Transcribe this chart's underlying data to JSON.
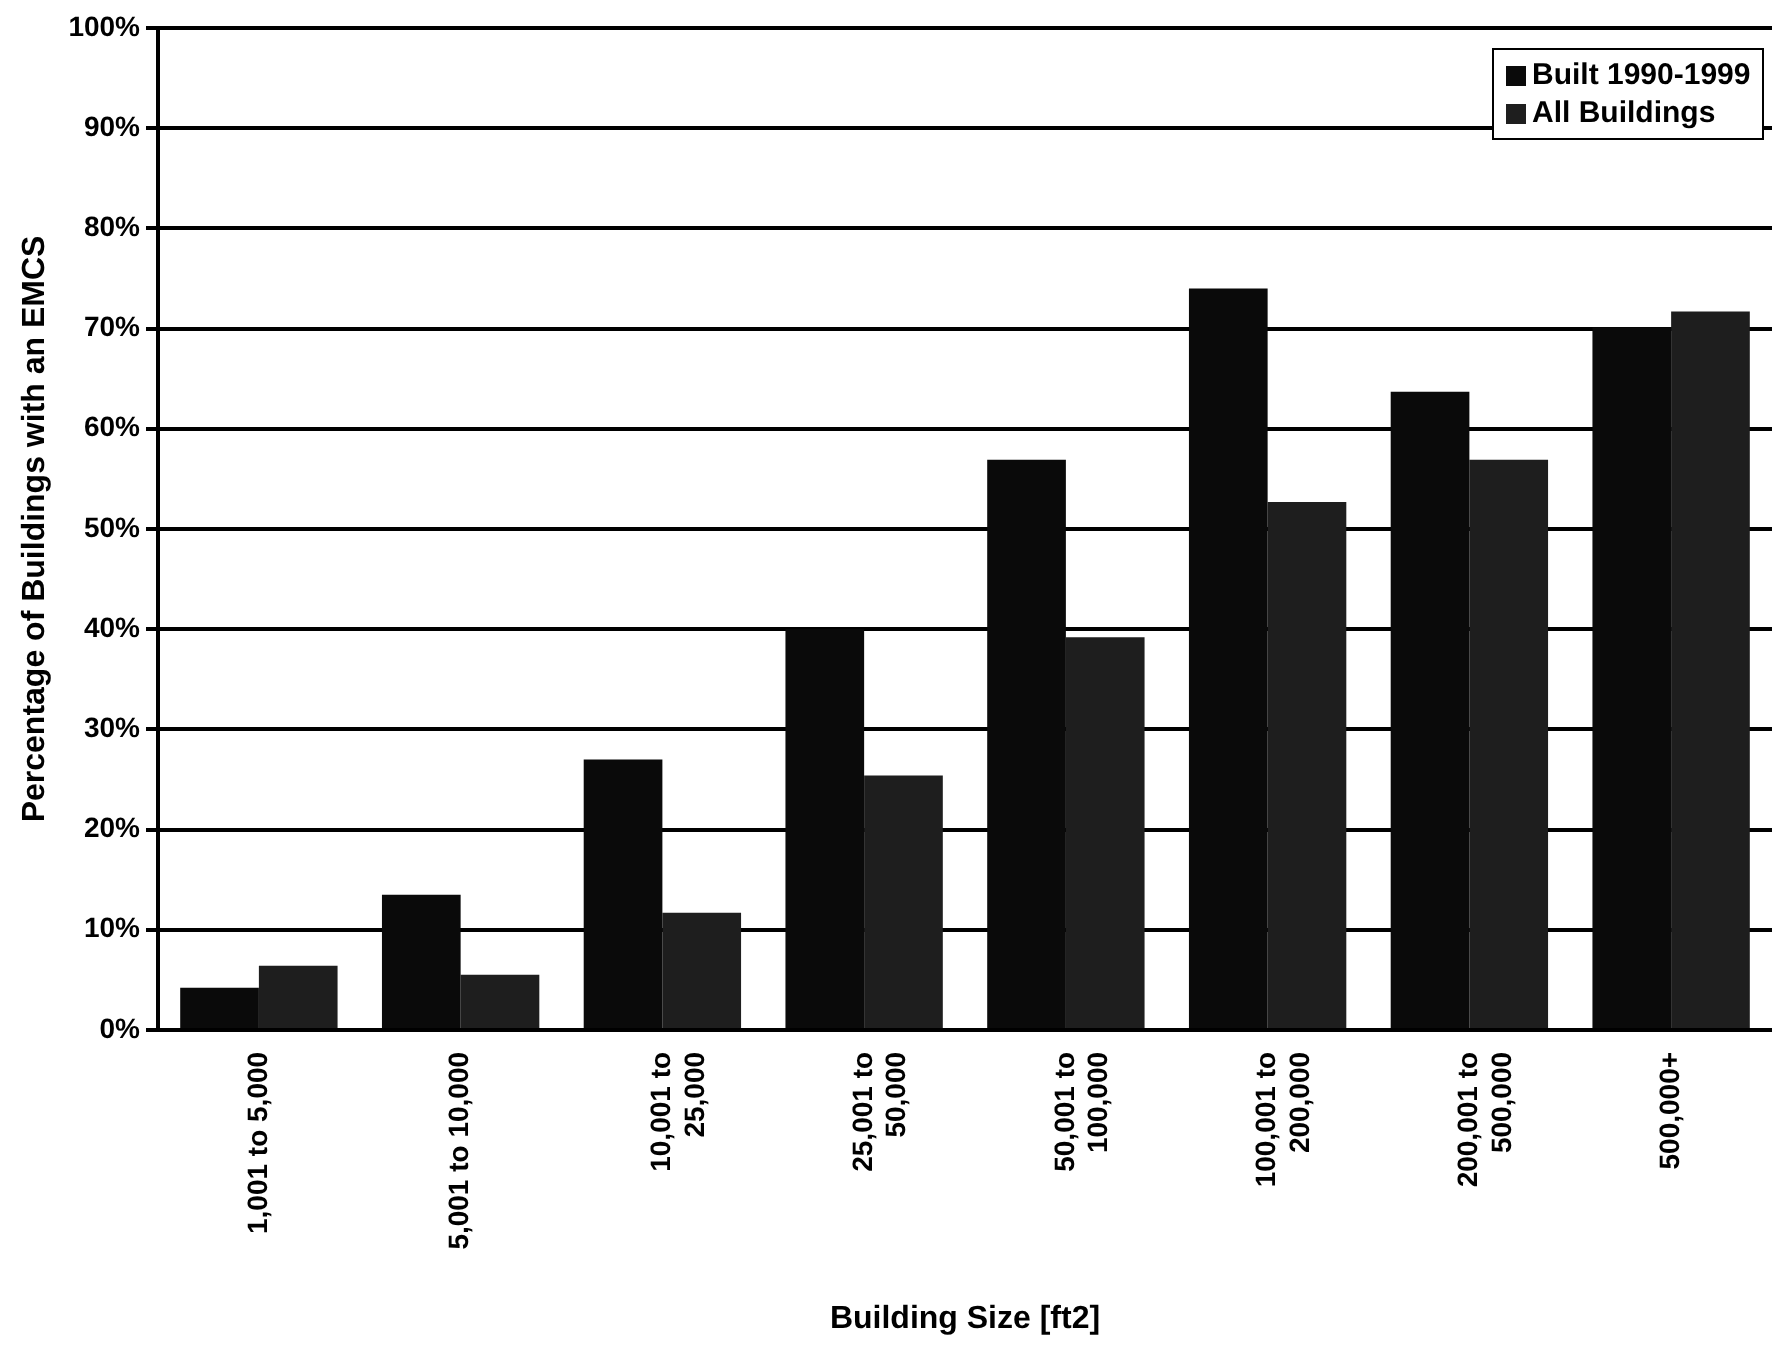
{
  "chart_data": {
    "type": "bar",
    "xlabel": "Building Size [ft2]",
    "ylabel": "Percentage of Buildings with an EMCS",
    "categories": [
      "1,001 to 5,000",
      "5,001 to 10,000",
      "10,001 to\n25,000",
      "25,001 to\n50,000",
      "50,001 to\n100,000",
      "100,001 to\n200,000",
      "200,001 to\n500,000",
      "500,000+"
    ],
    "series": [
      {
        "name": "Built 1990-1999",
        "color": "#0a0a0a",
        "values": [
          4.2,
          13.5,
          27,
          40,
          56.9,
          74,
          63.7,
          70.1
        ]
      },
      {
        "name": "All Buildings",
        "color": "#1e1e1e",
        "values": [
          6.4,
          5.5,
          11.7,
          25.4,
          39.2,
          52.7,
          56.9,
          71.7
        ]
      }
    ],
    "ylim": [
      0,
      100
    ],
    "yticks": [
      {
        "value": 0,
        "label": "0%"
      },
      {
        "value": 10,
        "label": "10%"
      },
      {
        "value": 20,
        "label": "20%"
      },
      {
        "value": 30,
        "label": "30%"
      },
      {
        "value": 40,
        "label": "40%"
      },
      {
        "value": 50,
        "label": "50%"
      },
      {
        "value": 60,
        "label": "60%"
      },
      {
        "value": 70,
        "label": "70%"
      },
      {
        "value": 80,
        "label": "80%"
      },
      {
        "value": 90,
        "label": "90%"
      },
      {
        "value": 100,
        "label": "100%"
      }
    ],
    "grid": "y",
    "legend": "top right"
  }
}
